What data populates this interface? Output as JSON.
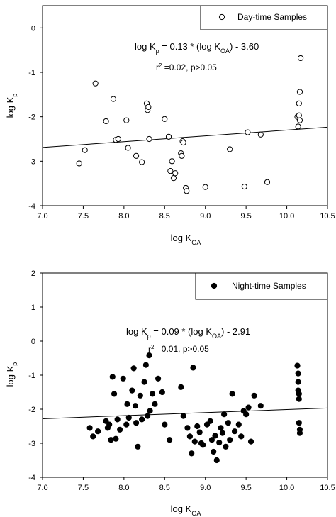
{
  "chart_data": [
    {
      "type": "scatter",
      "xlim": [
        7.0,
        10.5
      ],
      "ylim": [
        -4,
        0.5
      ],
      "x_ticks": [
        7.0,
        7.5,
        8.0,
        8.5,
        9.0,
        9.5,
        10.0,
        10.5
      ],
      "y_ticks": [
        -4,
        -3,
        -2,
        -1,
        0
      ],
      "x_tick_labels": [
        "7.0",
        "7.5",
        "8.0",
        "8.5",
        "9.0",
        "9.5",
        "10.0",
        "10.5"
      ],
      "y_tick_labels": [
        "-4",
        "-3",
        "-2",
        "-1",
        "0"
      ],
      "xlabel": {
        "main": "log K",
        "sub": "OA"
      },
      "ylabel": {
        "main": "log K",
        "sub": "p"
      },
      "legend": {
        "label": "Day-time Samples",
        "marker": "open-circle",
        "position": "top-right"
      },
      "equation": {
        "part1": "log K",
        "sub1": "p",
        "part2": " = 0.13 * (log K",
        "sub2": "OA",
        "part3": ") - 3.60"
      },
      "stats": {
        "part1": "r",
        "sup": "2",
        "part2": " =0.02, p>0.05"
      },
      "regression": {
        "slope": 0.13,
        "intercept": -3.6
      },
      "marker": "open",
      "points": [
        [
          7.45,
          -3.05
        ],
        [
          7.52,
          -2.75
        ],
        [
          7.65,
          -1.25
        ],
        [
          7.78,
          -2.1
        ],
        [
          7.87,
          -1.6
        ],
        [
          7.9,
          -2.52
        ],
        [
          7.93,
          -2.5
        ],
        [
          8.03,
          -2.08
        ],
        [
          8.05,
          -2.7
        ],
        [
          8.15,
          -2.88
        ],
        [
          8.22,
          -3.02
        ],
        [
          8.28,
          -1.7
        ],
        [
          8.29,
          -1.85
        ],
        [
          8.3,
          -1.78
        ],
        [
          8.31,
          -2.5
        ],
        [
          8.5,
          -2.05
        ],
        [
          8.55,
          -2.45
        ],
        [
          8.57,
          -3.22
        ],
        [
          8.59,
          -3.0
        ],
        [
          8.61,
          -3.38
        ],
        [
          8.63,
          -3.27
        ],
        [
          8.7,
          -2.82
        ],
        [
          8.71,
          -2.88
        ],
        [
          8.72,
          -2.55
        ],
        [
          8.73,
          -2.58
        ],
        [
          8.76,
          -3.6
        ],
        [
          8.77,
          -3.67
        ],
        [
          9.0,
          -3.58
        ],
        [
          9.3,
          -2.73
        ],
        [
          9.48,
          -3.57
        ],
        [
          9.52,
          -2.35
        ],
        [
          9.68,
          -2.4
        ],
        [
          9.76,
          -3.47
        ],
        [
          10.13,
          -2.0
        ],
        [
          10.14,
          -2.22
        ],
        [
          10.15,
          -1.97
        ],
        [
          10.15,
          -1.7
        ],
        [
          10.16,
          -1.44
        ],
        [
          10.16,
          -2.08
        ],
        [
          10.17,
          -0.68
        ]
      ]
    },
    {
      "type": "scatter",
      "xlim": [
        7.0,
        10.5
      ],
      "ylim": [
        -4,
        2
      ],
      "x_ticks": [
        7.0,
        7.5,
        8.0,
        8.5,
        9.0,
        9.5,
        10.0,
        10.5
      ],
      "y_ticks": [
        -4,
        -3,
        -2,
        -1,
        0,
        1,
        2
      ],
      "x_tick_labels": [
        "7.0",
        "7.5",
        "8.0",
        "8.5",
        "9.0",
        "9.5",
        "10.0",
        "10.5"
      ],
      "y_tick_labels": [
        "-4",
        "-3",
        "-2",
        "-1",
        "0",
        "1",
        "2"
      ],
      "xlabel": {
        "main": "log K",
        "sub": "OA"
      },
      "ylabel": {
        "main": "log K",
        "sub": "p"
      },
      "legend": {
        "label": "Night-time Samples",
        "marker": "filled-circle",
        "position": "top-right"
      },
      "equation": {
        "part1": "log K",
        "sub1": "p",
        "part2": " = 0.09 * (log K",
        "sub2": "OA",
        "part3": ") - 2.91"
      },
      "stats": {
        "part1": "r",
        "sup": "2",
        "part2": " =0.01, p>0.05"
      },
      "regression": {
        "slope": 0.09,
        "intercept": -2.91
      },
      "marker": "filled",
      "points": [
        [
          7.58,
          -2.55
        ],
        [
          7.62,
          -2.8
        ],
        [
          7.68,
          -2.65
        ],
        [
          7.78,
          -2.35
        ],
        [
          7.8,
          -2.55
        ],
        [
          7.82,
          -2.45
        ],
        [
          7.84,
          -2.9
        ],
        [
          7.86,
          -1.05
        ],
        [
          7.88,
          -1.55
        ],
        [
          7.9,
          -2.87
        ],
        [
          7.92,
          -2.3
        ],
        [
          7.95,
          -2.6
        ],
        [
          7.99,
          -1.1
        ],
        [
          8.03,
          -2.45
        ],
        [
          8.04,
          -1.85
        ],
        [
          8.06,
          -2.25
        ],
        [
          8.1,
          -1.45
        ],
        [
          8.12,
          -0.8
        ],
        [
          8.14,
          -1.9
        ],
        [
          8.15,
          -2.4
        ],
        [
          8.17,
          -3.1
        ],
        [
          8.2,
          -1.6
        ],
        [
          8.22,
          -2.3
        ],
        [
          8.25,
          -1.2
        ],
        [
          8.27,
          -0.7
        ],
        [
          8.29,
          -2.2
        ],
        [
          8.31,
          -0.42
        ],
        [
          8.32,
          -2.05
        ],
        [
          8.35,
          -1.55
        ],
        [
          8.38,
          -1.85
        ],
        [
          8.42,
          -1.1
        ],
        [
          8.47,
          -1.5
        ],
        [
          8.5,
          -2.45
        ],
        [
          8.56,
          -2.9
        ],
        [
          8.7,
          -1.35
        ],
        [
          8.73,
          -2.2
        ],
        [
          8.78,
          -2.55
        ],
        [
          8.81,
          -2.8
        ],
        [
          8.83,
          -3.3
        ],
        [
          8.85,
          -0.78
        ],
        [
          8.87,
          -2.95
        ],
        [
          8.9,
          -2.5
        ],
        [
          8.93,
          -2.68
        ],
        [
          8.95,
          -3.0
        ],
        [
          8.97,
          -3.05
        ],
        [
          9.02,
          -2.45
        ],
        [
          9.06,
          -2.35
        ],
        [
          9.08,
          -2.9
        ],
        [
          9.1,
          -3.25
        ],
        [
          9.12,
          -2.78
        ],
        [
          9.14,
          -3.5
        ],
        [
          9.17,
          -2.98
        ],
        [
          9.19,
          -2.55
        ],
        [
          9.21,
          -2.7
        ],
        [
          9.23,
          -2.15
        ],
        [
          9.25,
          -3.1
        ],
        [
          9.28,
          -2.4
        ],
        [
          9.3,
          -2.9
        ],
        [
          9.33,
          -1.55
        ],
        [
          9.36,
          -2.65
        ],
        [
          9.41,
          -2.45
        ],
        [
          9.44,
          -2.8
        ],
        [
          9.47,
          -2.05
        ],
        [
          9.5,
          -2.15
        ],
        [
          9.53,
          -1.95
        ],
        [
          9.56,
          -2.95
        ],
        [
          9.6,
          -1.6
        ],
        [
          9.68,
          -1.9
        ],
        [
          10.13,
          -0.72
        ],
        [
          10.14,
          -0.95
        ],
        [
          10.14,
          -1.2
        ],
        [
          10.14,
          -1.45
        ],
        [
          10.15,
          -1.55
        ],
        [
          10.15,
          -1.7
        ],
        [
          10.15,
          -2.4
        ],
        [
          10.16,
          -2.6
        ],
        [
          10.16,
          -2.7
        ]
      ]
    }
  ]
}
